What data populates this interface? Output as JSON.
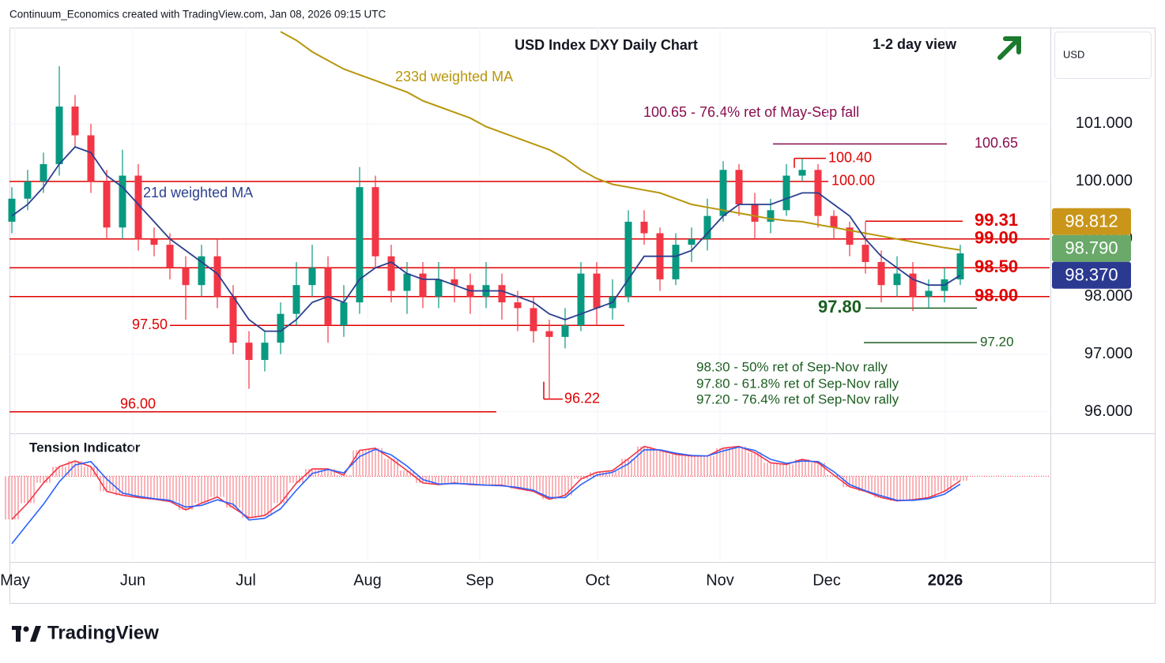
{
  "chart_data": {
    "type": "candlestick",
    "header": "Continuum_Economics created with TradingView.com, Jan 08, 2026 09:15 UTC",
    "title": "USD Index DXY Daily Chart",
    "subtitle": "1-2 day view",
    "currency": "USD",
    "source_logo": "TradingView",
    "x": [
      0,
      1,
      2,
      3,
      4,
      5,
      6,
      7,
      8,
      9,
      10,
      11,
      12,
      13,
      14,
      15,
      16,
      17,
      18,
      19,
      20,
      21,
      22,
      23,
      24,
      25,
      26,
      27,
      28,
      29,
      30,
      31,
      32,
      33,
      34,
      35,
      36,
      37,
      38,
      39,
      40,
      41,
      42,
      43,
      44,
      45,
      46,
      47,
      48,
      49,
      50,
      51,
      52,
      53,
      54,
      55,
      56,
      57,
      58,
      59,
      60
    ],
    "open": [
      99.3,
      99.7,
      100.0,
      100.3,
      101.3,
      100.8,
      100.0,
      99.2,
      100.1,
      99.0,
      98.9,
      98.5,
      98.2,
      98.7,
      98.0,
      97.2,
      96.9,
      97.2,
      97.7,
      98.2,
      98.5,
      97.5,
      97.9,
      99.9,
      98.7,
      98.1,
      98.4,
      98.0,
      98.3,
      98.2,
      98.0,
      98.2,
      97.9,
      97.8,
      97.4,
      97.3,
      97.5,
      98.4,
      97.8,
      98.0,
      99.3,
      99.1,
      98.3,
      98.9,
      99.0,
      99.4,
      100.2,
      99.6,
      99.3,
      99.5,
      100.1,
      100.2,
      99.4,
      99.2,
      98.9,
      98.6,
      98.2,
      98.4,
      98.0,
      98.1,
      98.3
    ],
    "high": [
      99.9,
      100.2,
      100.5,
      102.0,
      101.5,
      101.0,
      100.2,
      100.55,
      100.3,
      99.2,
      99.1,
      98.7,
      98.9,
      99.0,
      98.2,
      97.4,
      97.4,
      97.9,
      98.6,
      98.9,
      98.7,
      98.2,
      100.25,
      100.1,
      98.9,
      98.6,
      98.6,
      98.6,
      98.5,
      98.4,
      98.6,
      98.4,
      98.1,
      98.0,
      97.6,
      97.8,
      98.6,
      98.6,
      98.3,
      99.5,
      99.5,
      99.2,
      99.1,
      99.2,
      99.7,
      100.35,
      100.3,
      99.8,
      99.7,
      100.3,
      100.4,
      100.3,
      99.5,
      99.3,
      99.3,
      98.8,
      98.7,
      98.6,
      98.3,
      98.5,
      98.9
    ],
    "low": [
      99.1,
      99.5,
      99.8,
      100.1,
      100.6,
      99.8,
      99.0,
      99.0,
      98.8,
      98.7,
      98.3,
      97.6,
      98.0,
      97.8,
      97.0,
      96.4,
      96.7,
      97.0,
      97.5,
      98.0,
      97.2,
      97.3,
      97.7,
      98.5,
      97.9,
      97.7,
      97.8,
      97.8,
      97.9,
      97.7,
      97.8,
      97.6,
      97.4,
      97.2,
      96.22,
      97.1,
      97.4,
      97.5,
      97.6,
      97.9,
      98.9,
      98.1,
      98.2,
      98.6,
      98.8,
      99.3,
      99.4,
      99.0,
      99.1,
      99.4,
      100.0,
      99.2,
      99.0,
      98.7,
      98.4,
      97.9,
      98.0,
      97.75,
      97.8,
      97.9,
      98.2
    ],
    "close": [
      99.7,
      100.0,
      100.3,
      101.3,
      100.8,
      100.0,
      99.2,
      100.1,
      99.0,
      98.9,
      98.5,
      98.2,
      98.7,
      98.0,
      97.2,
      96.9,
      97.2,
      97.7,
      98.2,
      98.5,
      97.5,
      97.9,
      99.9,
      98.7,
      98.1,
      98.4,
      98.0,
      98.3,
      98.2,
      98.0,
      98.2,
      97.9,
      97.8,
      97.4,
      97.3,
      97.5,
      98.4,
      97.8,
      98.0,
      99.3,
      99.1,
      98.3,
      98.9,
      99.0,
      99.4,
      100.2,
      99.6,
      99.3,
      99.5,
      100.1,
      100.2,
      99.4,
      99.2,
      98.9,
      98.6,
      98.2,
      98.4,
      98.0,
      98.1,
      98.3,
      98.75
    ],
    "up_color": "#089981",
    "down_color": "#f23645",
    "moving_averages": [
      {
        "name": "233d weighted MA",
        "color": "#b8960c",
        "values": [
          null,
          null,
          null,
          null,
          null,
          null,
          null,
          null,
          null,
          null,
          null,
          null,
          null,
          null,
          null,
          null,
          null,
          102.6,
          102.45,
          102.25,
          102.1,
          101.95,
          101.85,
          101.75,
          101.65,
          101.55,
          101.4,
          101.3,
          101.2,
          101.1,
          100.95,
          100.85,
          100.75,
          100.65,
          100.55,
          100.4,
          100.2,
          100.05,
          99.95,
          99.9,
          99.85,
          99.8,
          99.7,
          99.6,
          99.55,
          99.5,
          99.45,
          99.4,
          99.35,
          99.32,
          99.3,
          99.25,
          99.2,
          99.15,
          99.1,
          99.05,
          99.0,
          98.95,
          98.9,
          98.85,
          98.81
        ]
      },
      {
        "name": "21d weighted MA",
        "color": "#2a3f8f",
        "values": [
          99.4,
          99.6,
          99.9,
          100.3,
          100.6,
          100.5,
          100.1,
          99.9,
          99.6,
          99.3,
          99.0,
          98.8,
          98.6,
          98.4,
          98.0,
          97.6,
          97.4,
          97.4,
          97.6,
          97.9,
          98.0,
          97.9,
          98.3,
          98.5,
          98.6,
          98.4,
          98.3,
          98.3,
          98.2,
          98.1,
          98.1,
          98.1,
          98.0,
          97.9,
          97.7,
          97.6,
          97.7,
          97.8,
          97.9,
          98.3,
          98.7,
          98.7,
          98.7,
          98.8,
          99.1,
          99.4,
          99.6,
          99.6,
          99.6,
          99.7,
          99.8,
          99.8,
          99.6,
          99.4,
          99.0,
          98.7,
          98.5,
          98.3,
          98.2,
          98.2,
          98.37
        ]
      }
    ],
    "xlim": [
      -0.15,
      65.65
    ],
    "xticks": [
      {
        "value": 0.2,
        "label": "May"
      },
      {
        "value": 7.65,
        "label": "Jun"
      },
      {
        "value": 14.8,
        "label": "Jul"
      },
      {
        "value": 22.5,
        "label": "Aug"
      },
      {
        "value": 29.6,
        "label": "Sep"
      },
      {
        "value": 37.05,
        "label": "Oct"
      },
      {
        "value": 44.8,
        "label": "Nov"
      },
      {
        "value": 51.55,
        "label": "Dec"
      },
      {
        "value": 59.05,
        "label": "2026"
      }
    ],
    "ylim": [
      95.64,
      102.67
    ],
    "yticks": [
      {
        "value": 96,
        "label": "96.000"
      },
      {
        "value": 97,
        "label": "97.000"
      },
      {
        "value": 98,
        "label": "98.000"
      },
      {
        "value": 99,
        "label": "99.000"
      },
      {
        "value": 100,
        "label": "100.000"
      },
      {
        "value": 101,
        "label": "101.000"
      }
    ],
    "levels": [
      {
        "value": 100.65,
        "label": "100.65",
        "color": "#880e4f"
      },
      {
        "value": 100.4,
        "label": "100.40",
        "color": "#e00000"
      },
      {
        "value": 100.0,
        "label": "100.00",
        "color": "#e00000"
      },
      {
        "value": 99.31,
        "label": "99.31",
        "color": "#e00000"
      },
      {
        "value": 99.0,
        "label": "99.00",
        "color": "#e00000"
      },
      {
        "value": 98.5,
        "label": "98.50",
        "color": "#e00000"
      },
      {
        "value": 98.0,
        "label": "98.00",
        "color": "#e00000"
      },
      {
        "value": 97.8,
        "label": "97.80",
        "color": "#1b5e20"
      },
      {
        "value": 97.5,
        "label": "97.50",
        "color": "#e00000"
      },
      {
        "value": 97.2,
        "label": "97.20",
        "color": "#1b5e20"
      },
      {
        "value": 96.22,
        "label": "96.22",
        "color": "#e00000"
      },
      {
        "value": 96.0,
        "label": "96.00",
        "color": "#e00000"
      }
    ],
    "price_tags": [
      {
        "value": 98.812,
        "label": "98.812",
        "color": "#c9961a"
      },
      {
        "value": 98.79,
        "label": "98.790",
        "color": "#6aa96a"
      },
      {
        "value": 98.37,
        "label": "98.370",
        "color": "#2b3990"
      }
    ],
    "annotations": [
      "100.65 - 76.4% ret of May-Sep fall",
      "98.30 - 50% ret of Sep-Nov rally",
      "97.80 - 61.8% ret of Sep-Nov rally",
      "97.20 - 76.4% ret of Sep-Nov rally"
    ],
    "indicator": {
      "title": "Tension Indicator",
      "ylim": [
        -1.5,
        0.75
      ],
      "series": [
        {
          "color": "#f23645",
          "values": [
            -0.77,
            -0.48,
            -0.12,
            0.17,
            0.27,
            0.17,
            -0.27,
            -0.34,
            -0.38,
            -0.41,
            -0.45,
            -0.6,
            -0.48,
            -0.37,
            -0.56,
            -0.74,
            -0.7,
            -0.48,
            -0.12,
            0.13,
            0.13,
            0.02,
            0.46,
            0.5,
            0.31,
            0.1,
            -0.12,
            -0.15,
            -0.12,
            -0.15,
            -0.16,
            -0.16,
            -0.22,
            -0.27,
            -0.41,
            -0.34,
            -0.05,
            0.07,
            0.1,
            0.31,
            0.53,
            0.46,
            0.39,
            0.36,
            0.36,
            0.5,
            0.53,
            0.42,
            0.24,
            0.21,
            0.3,
            0.24,
            0.02,
            -0.19,
            -0.27,
            -0.38,
            -0.44,
            -0.42,
            -0.38,
            -0.27,
            -0.08
          ]
        },
        {
          "color": "#2962ff",
          "values": [
            -1.2,
            -0.85,
            -0.5,
            -0.1,
            0.2,
            0.26,
            -0.05,
            -0.3,
            -0.36,
            -0.4,
            -0.43,
            -0.55,
            -0.52,
            -0.42,
            -0.5,
            -0.78,
            -0.75,
            -0.58,
            -0.25,
            0.05,
            0.12,
            0.06,
            0.35,
            0.48,
            0.38,
            0.18,
            -0.06,
            -0.14,
            -0.13,
            -0.14,
            -0.16,
            -0.17,
            -0.2,
            -0.25,
            -0.38,
            -0.38,
            -0.15,
            0.02,
            0.07,
            0.22,
            0.47,
            0.47,
            0.41,
            0.37,
            0.36,
            0.45,
            0.52,
            0.46,
            0.3,
            0.23,
            0.27,
            0.26,
            0.08,
            -0.15,
            -0.26,
            -0.35,
            -0.43,
            -0.43,
            -0.4,
            -0.32,
            -0.14
          ]
        }
      ]
    }
  }
}
